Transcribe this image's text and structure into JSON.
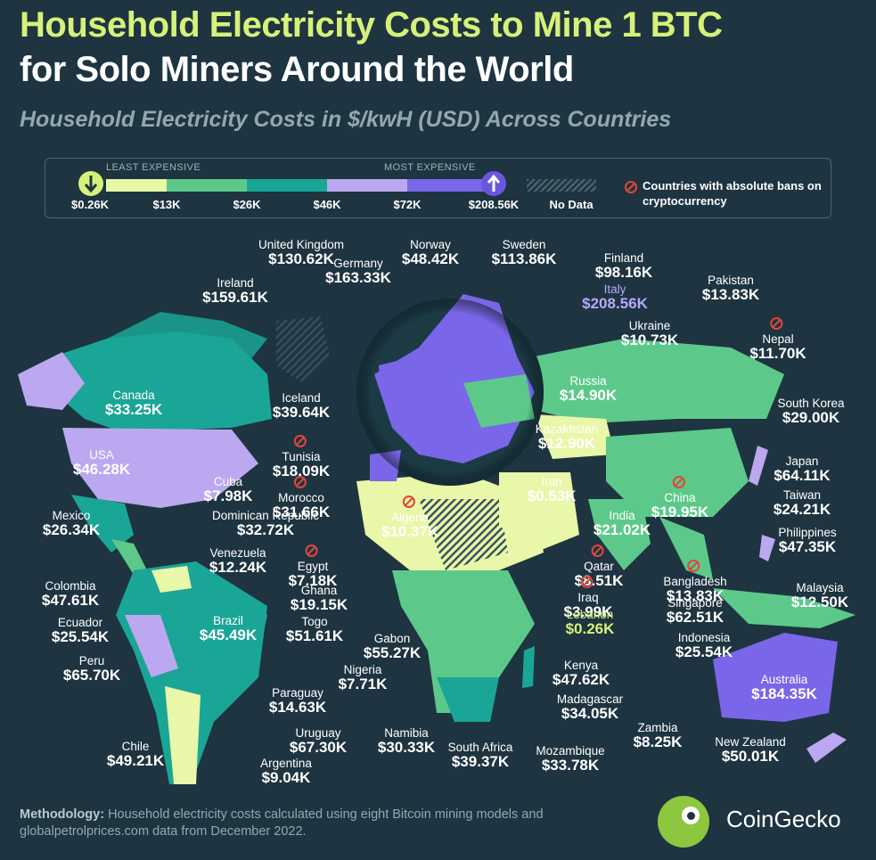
{
  "title_line1": "Household Electricity Costs to Mine 1 BTC",
  "title_line2": "for Solo Miners Around the World",
  "subtitle": "Household Electricity Costs in $/kwH (USD) Across Countries",
  "legend": {
    "least_label": "LEAST EXPENSIVE",
    "most_label": "MOST EXPENSIVE",
    "ticks": [
      "$0.26K",
      "$13K",
      "$26K",
      "$46K",
      "$72K",
      "$208.56K",
      "No Data"
    ],
    "colors": [
      "#e9f7a8",
      "#5cc98a",
      "#1aa696",
      "#bba8f0",
      "#7a66e8"
    ],
    "ban_note": "Countries with absolute bans on cryptocurrency",
    "icons": {
      "least": "arrow-down-icon",
      "most": "arrow-up-icon",
      "ban": "ban-icon"
    }
  },
  "countries": [
    {
      "name": "United Kingdom",
      "value": "$130.62K"
    },
    {
      "name": "Norway",
      "value": "$48.42K"
    },
    {
      "name": "Sweden",
      "value": "$113.86K"
    },
    {
      "name": "Finland",
      "value": "$98.16K"
    },
    {
      "name": "Germany",
      "value": "$163.33K"
    },
    {
      "name": "Ireland",
      "value": "$159.61K"
    },
    {
      "name": "Italy",
      "value": "$208.56K"
    },
    {
      "name": "Pakistan",
      "value": "$13.83K"
    },
    {
      "name": "Nepal",
      "value": "$11.70K"
    },
    {
      "name": "Ukraine",
      "value": "$10.73K"
    },
    {
      "name": "Canada",
      "value": "$33.25K"
    },
    {
      "name": "Iceland",
      "value": "$39.64K"
    },
    {
      "name": "Russia",
      "value": "$14.90K"
    },
    {
      "name": "South Korea",
      "value": "$29.00K"
    },
    {
      "name": "Tunisia",
      "value": "$18.09K"
    },
    {
      "name": "Kazakhstan",
      "value": "$12.90K"
    },
    {
      "name": "USA",
      "value": "$46.28K"
    },
    {
      "name": "Japan",
      "value": "$64.11K"
    },
    {
      "name": "Cuba",
      "value": "$7.98K"
    },
    {
      "name": "Morocco",
      "value": "$31.66K"
    },
    {
      "name": "Iran",
      "value": "$0.53K"
    },
    {
      "name": "China",
      "value": "$19.95K"
    },
    {
      "name": "Taiwan",
      "value": "$24.21K"
    },
    {
      "name": "Algeria",
      "value": "$10.37K"
    },
    {
      "name": "Mexico",
      "value": "$26.34K"
    },
    {
      "name": "Dominican Republic",
      "value": "$32.72K"
    },
    {
      "name": "India",
      "value": "$21.02K"
    },
    {
      "name": "Philippines",
      "value": "$47.35K"
    },
    {
      "name": "Venezuela",
      "value": "$12.24K"
    },
    {
      "name": "Egypt",
      "value": "$7.18K"
    },
    {
      "name": "Qatar",
      "value": "$8.51K"
    },
    {
      "name": "Bangladesh",
      "value": "$13.83K"
    },
    {
      "name": "Colombia",
      "value": "$47.61K"
    },
    {
      "name": "Ghana",
      "value": "$19.15K"
    },
    {
      "name": "Iraq",
      "value": "$3.99K"
    },
    {
      "name": "Malaysia",
      "value": "$12.50K"
    },
    {
      "name": "Ecuador",
      "value": "$25.54K"
    },
    {
      "name": "Brazil",
      "value": "$45.49K"
    },
    {
      "name": "Togo",
      "value": "$51.61K"
    },
    {
      "name": "Lebanon",
      "value": "$0.26K"
    },
    {
      "name": "Singapore",
      "value": "$62.51K"
    },
    {
      "name": "Gabon",
      "value": "$55.27K"
    },
    {
      "name": "Indonesia",
      "value": "$25.54K"
    },
    {
      "name": "Peru",
      "value": "$65.70K"
    },
    {
      "name": "Nigeria",
      "value": "$7.71K"
    },
    {
      "name": "Kenya",
      "value": "$47.62K"
    },
    {
      "name": "Australia",
      "value": "$184.35K"
    },
    {
      "name": "Paraguay",
      "value": "$14.63K"
    },
    {
      "name": "Madagascar",
      "value": "$34.05K"
    },
    {
      "name": "Uruguay",
      "value": "$67.30K"
    },
    {
      "name": "Namibia",
      "value": "$30.33K"
    },
    {
      "name": "Zambia",
      "value": "$8.25K"
    },
    {
      "name": "Chile",
      "value": "$49.21K"
    },
    {
      "name": "South Africa",
      "value": "$39.37K"
    },
    {
      "name": "Mozambique",
      "value": "$33.78K"
    },
    {
      "name": "New Zealand",
      "value": "$50.01K"
    },
    {
      "name": "Argentina",
      "value": "$9.04K"
    }
  ],
  "methodology": {
    "label": "Methodology:",
    "text": "Household electricity costs calculated using eight Bitcoin mining models and globalpetrolprices.com data from December 2022."
  },
  "brand": "CoinGecko"
}
